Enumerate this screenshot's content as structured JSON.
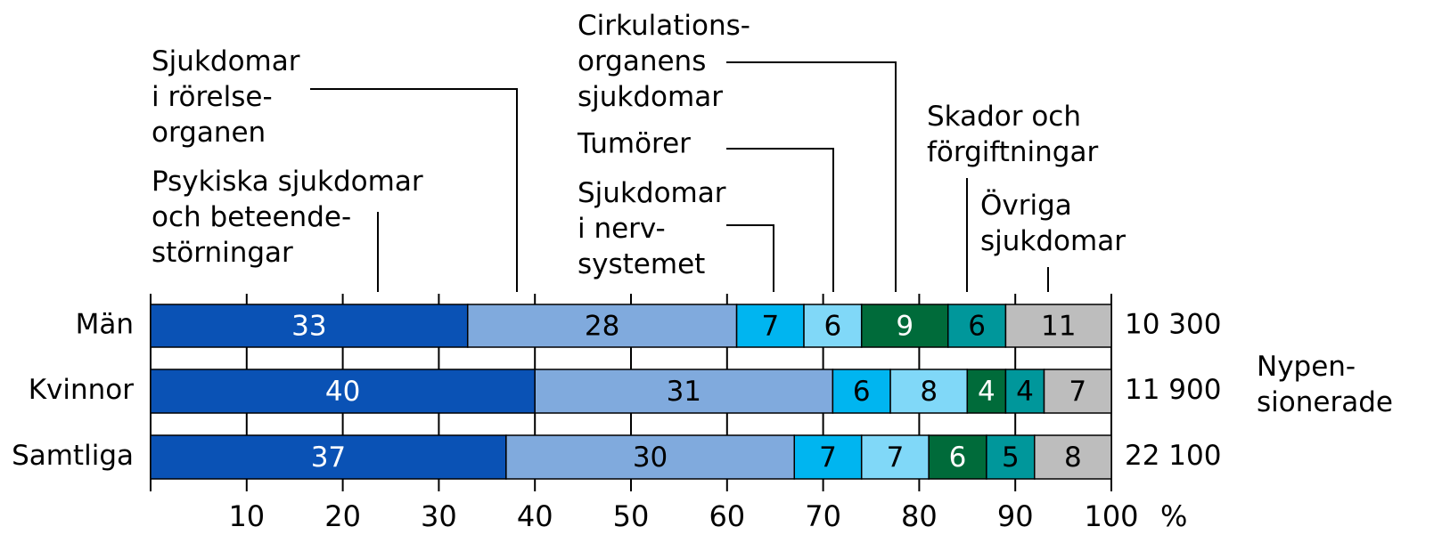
{
  "chart_data": {
    "type": "stacked_bar_horizontal",
    "categories": [
      "Män",
      "Kvinnor",
      "Samtliga"
    ],
    "series": [
      {
        "name": "Psykiska sjukdomar\noch beteende-\nstörningar",
        "color": "#0a52b5",
        "label_color": "#ffffff",
        "values": [
          33,
          40,
          37
        ]
      },
      {
        "name": "Sjukdomar\ni rörelse-\norganen",
        "color": "#80aadd",
        "label_color": "#000000",
        "values": [
          28,
          31,
          30
        ]
      },
      {
        "name": "Sjukdomar\ni nerv-\nsystemet",
        "color": "#00b5f0",
        "label_color": "#000000",
        "values": [
          7,
          6,
          7
        ]
      },
      {
        "name": "Tumörer",
        "color": "#80d8f8",
        "label_color": "#000000",
        "values": [
          6,
          8,
          7
        ]
      },
      {
        "name": "Cirkulations-\norganens\nsjukdomar",
        "color": "#006b3a",
        "label_color": "#ffffff",
        "values": [
          9,
          4,
          6
        ]
      },
      {
        "name": "Skador och\nförgiftningar",
        "color": "#00979b",
        "label_color": "#000000",
        "values": [
          6,
          4,
          5
        ]
      },
      {
        "name": "Övriga\nsjukdomar",
        "color": "#bdbdbd",
        "label_color": "#000000",
        "values": [
          11,
          7,
          8
        ]
      }
    ],
    "xlim": [
      0,
      100
    ],
    "xticks": [
      10,
      20,
      30,
      40,
      50,
      60,
      70,
      80,
      90,
      100
    ],
    "x_unit": "%",
    "grid": true,
    "totals": {
      "title": "Nypen-\nsionerade",
      "values": [
        10300,
        11900,
        22100
      ],
      "value_labels": [
        "10 300",
        "11 900",
        "22 100"
      ]
    }
  }
}
